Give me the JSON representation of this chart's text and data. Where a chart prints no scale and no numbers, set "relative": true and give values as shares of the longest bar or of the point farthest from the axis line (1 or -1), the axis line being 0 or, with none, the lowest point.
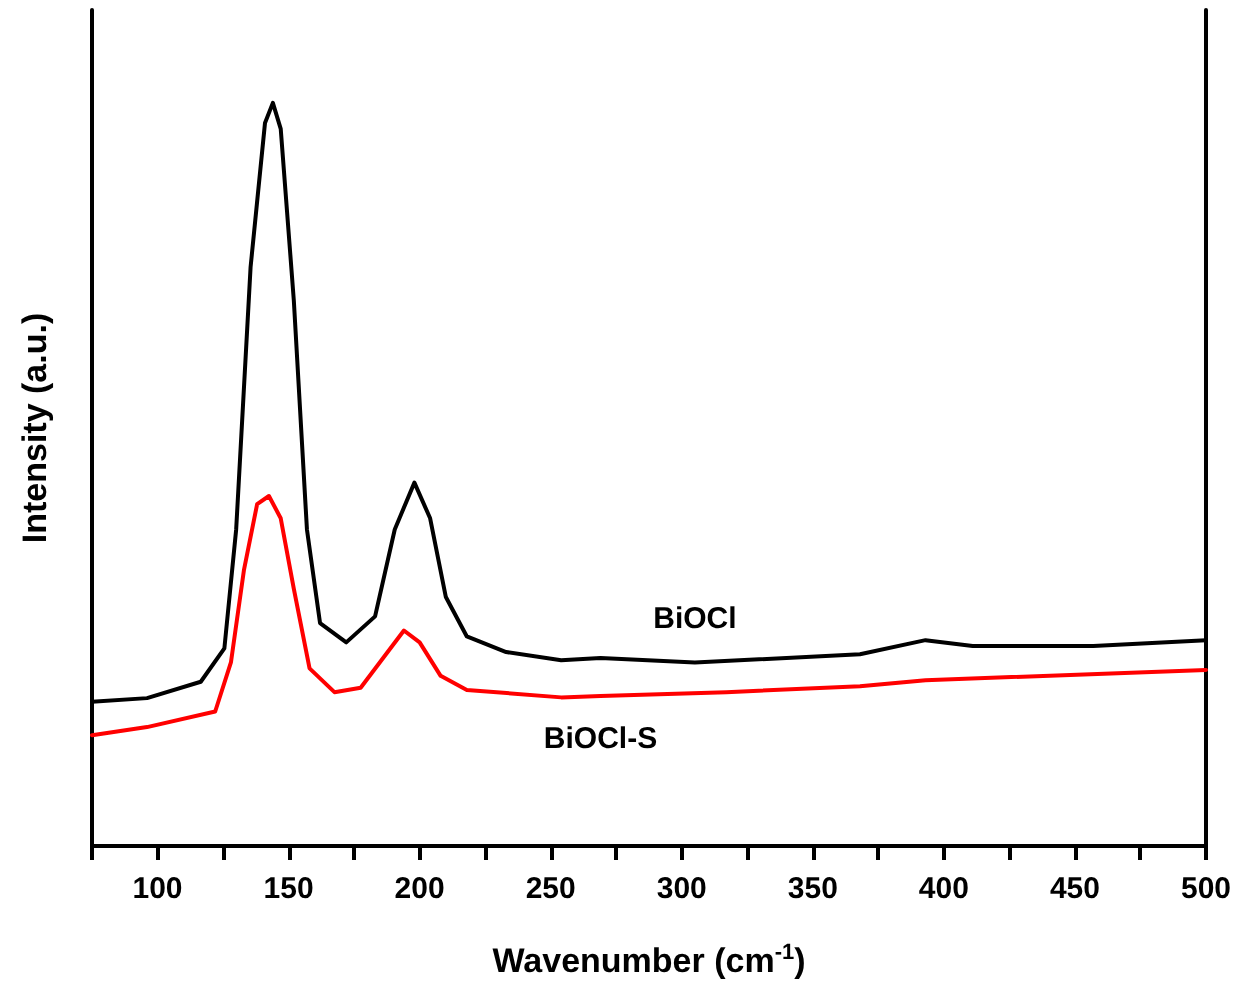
{
  "chart_data": {
    "type": "line",
    "relative": true,
    "xlabel": "Wavenumber (cm$^{-1}$)",
    "ylabel": "Intensity (a.u.)",
    "xlim": [
      75,
      500
    ],
    "xticks": [
      {
        "value": 75,
        "label": null
      },
      100,
      {
        "value": 125,
        "label": null
      },
      150,
      {
        "value": 175,
        "label": null
      },
      200,
      {
        "value": 225,
        "label": null
      },
      250,
      {
        "value": 275,
        "label": null
      },
      300,
      {
        "value": 325,
        "label": null
      },
      350,
      {
        "value": 375,
        "label": null
      },
      400,
      {
        "value": 425,
        "label": null
      },
      450,
      {
        "value": 475,
        "label": null
      },
      500
    ],
    "grid": false,
    "legend": false,
    "marker": "none",
    "line_style": "solid",
    "series": [
      {
        "name": "BiOCl",
        "color": "#000000",
        "x": [
          75,
          96,
          116.5,
          125.5,
          130,
          135.5,
          141,
          144,
          147,
          152,
          157,
          162,
          172,
          183,
          190.5,
          198,
          204,
          210,
          218,
          233,
          254,
          269,
          305,
          368,
          393,
          411,
          457,
          500
        ],
        "values": [
          0.194,
          0.199,
          0.221,
          0.266,
          0.426,
          0.779,
          0.973,
          1.0,
          0.965,
          0.734,
          0.426,
          0.3,
          0.274,
          0.309,
          0.426,
          0.489,
          0.441,
          0.335,
          0.282,
          0.261,
          0.25,
          0.253,
          0.247,
          0.258,
          0.277,
          0.269,
          0.269,
          0.277
        ]
      },
      {
        "name": "BiOCl-S",
        "color": "#ff0000",
        "x": [
          75,
          96,
          122,
          128,
          133,
          138,
          142.5,
          147,
          152,
          158,
          167.5,
          177.5,
          186.5,
          194,
          200,
          208,
          218,
          254,
          269,
          317,
          368,
          393,
          500
        ],
        "values": [
          0.149,
          0.16,
          0.181,
          0.247,
          0.372,
          0.46,
          0.471,
          0.441,
          0.346,
          0.239,
          0.207,
          0.213,
          0.255,
          0.29,
          0.274,
          0.229,
          0.21,
          0.2,
          0.202,
          0.207,
          0.215,
          0.223,
          0.237
        ]
      }
    ]
  }
}
